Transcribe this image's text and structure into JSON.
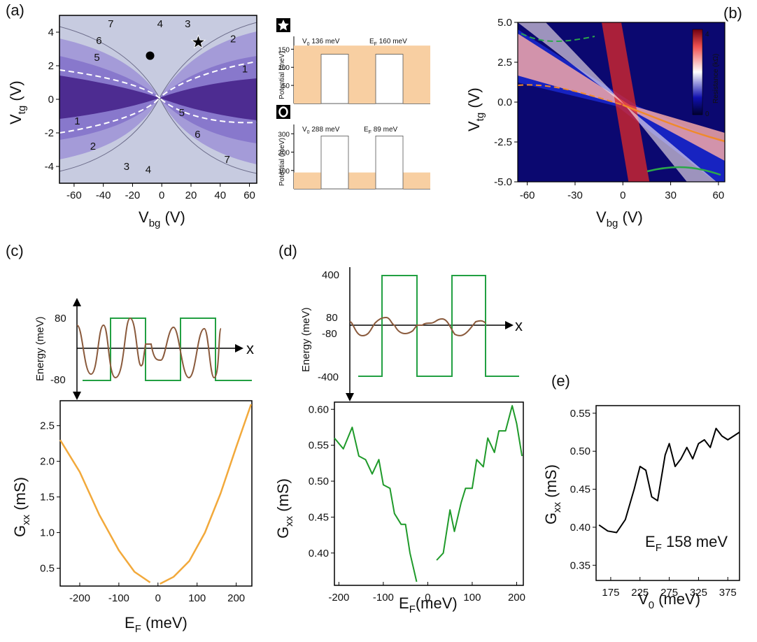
{
  "panels": {
    "a": "(a)",
    "b": "(b)",
    "c": "(c)",
    "d": "(d)",
    "e": "(e)"
  },
  "chart_data": [
    {
      "id": "a-map",
      "type": "heatmap",
      "title": "",
      "xlabel": "V",
      "xlabel_sub": "bg",
      "xlabel_unit": " (V)",
      "ylabel": "V",
      "ylabel_sub": "tg",
      "ylabel_unit": " (V)",
      "xlim": [
        -70,
        65
      ],
      "ylim": [
        -5,
        5
      ],
      "xticks": [
        -60,
        -40,
        -20,
        0,
        20,
        40,
        60
      ],
      "yticks": [
        4,
        2,
        0,
        -2,
        -4
      ],
      "contour_labels": [
        "7",
        "6",
        "5",
        "4",
        "3",
        "2",
        "1",
        "1",
        "2",
        "3",
        "4",
        "5",
        "6",
        "7"
      ],
      "markers": [
        {
          "shape": "dot",
          "x": -8,
          "y": 2.6
        },
        {
          "shape": "star",
          "x": 25,
          "y": 3.4
        }
      ]
    },
    {
      "id": "a-inset-star",
      "type": "line",
      "ylabel": "Potential (meV)",
      "yticks": [
        150,
        100,
        50
      ],
      "ylim": [
        0,
        170
      ],
      "v0_label": "V",
      "v0_sub": "0",
      "v0_text": " 136 meV",
      "ef_label": "E",
      "ef_sub": "F",
      "ef_text": " 160 meV",
      "V0": 136,
      "EF": 160
    },
    {
      "id": "a-inset-circle",
      "type": "line",
      "ylabel": "Potential (meV)",
      "yticks": [
        300,
        200,
        100
      ],
      "ylim": [
        0,
        320
      ],
      "v0_label": "V",
      "v0_sub": "0",
      "v0_text": " 288 meV",
      "ef_label": "E",
      "ef_sub": "F",
      "ef_text": " 89 meV",
      "V0": 288,
      "EF": 89
    },
    {
      "id": "b-map",
      "type": "heatmap",
      "xlabel": "V",
      "xlabel_sub": "bg",
      "xlabel_unit": " (V)",
      "ylabel": "V",
      "ylabel_sub": "tg",
      "ylabel_unit": " (V)",
      "xlim": [
        -66,
        64
      ],
      "ylim": [
        -5,
        5
      ],
      "xticks": [
        -60,
        -30,
        0,
        30,
        60
      ],
      "yticks": [
        "5.0",
        "2.5",
        "0.0",
        "-2.5",
        "-5.0"
      ],
      "colorbar": {
        "label": "Resistance (kΩ)",
        "min": "0",
        "max": "4"
      }
    },
    {
      "id": "c-top",
      "type": "line",
      "ylabel": "Energy (meV)",
      "yticks": [
        "80",
        "-80"
      ],
      "xaxis_label": "x"
    },
    {
      "id": "c",
      "type": "line",
      "xlabel": "E",
      "xlabel_sub": "F",
      "xlabel_unit": " (meV)",
      "ylabel": "G",
      "ylabel_sub": "xx",
      "ylabel_unit": " (mS)",
      "xlim": [
        -250,
        240
      ],
      "ylim": [
        0.25,
        2.85
      ],
      "xticks": [
        -200,
        -100,
        0,
        100,
        200
      ],
      "yticks": [
        "2.5",
        "2.0",
        "1.5",
        "1.0",
        "0.5"
      ],
      "series": [
        {
          "name": "negative",
          "x": [
            -250,
            -200,
            -150,
            -100,
            -60,
            -20
          ],
          "y": [
            2.3,
            1.85,
            1.25,
            0.75,
            0.45,
            0.3
          ]
        },
        {
          "name": "positive",
          "x": [
            5,
            40,
            80,
            120,
            160,
            200,
            238
          ],
          "y": [
            0.28,
            0.38,
            0.6,
            1.0,
            1.55,
            2.2,
            2.8
          ]
        }
      ]
    },
    {
      "id": "d-top",
      "type": "line",
      "ylabel": "Energy (meV)",
      "yticks": [
        "400",
        "80",
        "-80",
        "-400"
      ],
      "xaxis_label": "x"
    },
    {
      "id": "d",
      "type": "line",
      "xlabel": "E",
      "xlabel_sub": "F",
      "xlabel_unit": "(meV)",
      "ylabel": "G",
      "ylabel_sub": "xx",
      "ylabel_unit": " (mS)",
      "xlim": [
        -210,
        215
      ],
      "ylim": [
        0.355,
        0.61
      ],
      "xticks": [
        -200,
        -100,
        0,
        100,
        200
      ],
      "yticks": [
        "0.60",
        "0.55",
        "0.50",
        "0.45",
        "0.40"
      ],
      "series": [
        {
          "name": "negative",
          "x": [
            -210,
            -190,
            -170,
            -155,
            -140,
            -125,
            -110,
            -100,
            -85,
            -75,
            -60,
            -50,
            -40,
            -25
          ],
          "y": [
            0.56,
            0.545,
            0.575,
            0.535,
            0.53,
            0.51,
            0.53,
            0.495,
            0.49,
            0.455,
            0.44,
            0.44,
            0.4,
            0.36
          ]
        },
        {
          "name": "positive",
          "x": [
            20,
            35,
            50,
            60,
            75,
            85,
            100,
            110,
            125,
            135,
            150,
            160,
            175,
            190,
            200,
            212
          ],
          "y": [
            0.39,
            0.4,
            0.46,
            0.43,
            0.47,
            0.49,
            0.49,
            0.53,
            0.52,
            0.56,
            0.54,
            0.57,
            0.57,
            0.605,
            0.58,
            0.535
          ]
        }
      ]
    },
    {
      "id": "e",
      "type": "line",
      "xlabel": "V",
      "xlabel_sub": "0",
      "xlabel_unit": " (meV)",
      "ylabel": "G",
      "ylabel_sub": "xx",
      "ylabel_unit": " (mS)",
      "annotation": {
        "label": "E",
        "sub": "F",
        "text": " 158 meV"
      },
      "xlim": [
        150,
        395
      ],
      "ylim": [
        0.33,
        0.56
      ],
      "xticks": [
        175,
        225,
        275,
        325,
        375
      ],
      "yticks": [
        "0.55",
        "0.50",
        "0.45",
        "0.40",
        "0.35"
      ],
      "series": [
        {
          "name": "Gxx",
          "x": [
            155,
            170,
            185,
            200,
            215,
            225,
            235,
            245,
            255,
            268,
            275,
            285,
            295,
            305,
            315,
            325,
            335,
            345,
            355,
            365,
            375,
            385,
            395
          ],
          "y": [
            0.403,
            0.395,
            0.393,
            0.41,
            0.45,
            0.48,
            0.475,
            0.44,
            0.435,
            0.495,
            0.51,
            0.48,
            0.49,
            0.505,
            0.49,
            0.51,
            0.515,
            0.505,
            0.53,
            0.52,
            0.515,
            0.52,
            0.525
          ]
        }
      ]
    }
  ]
}
